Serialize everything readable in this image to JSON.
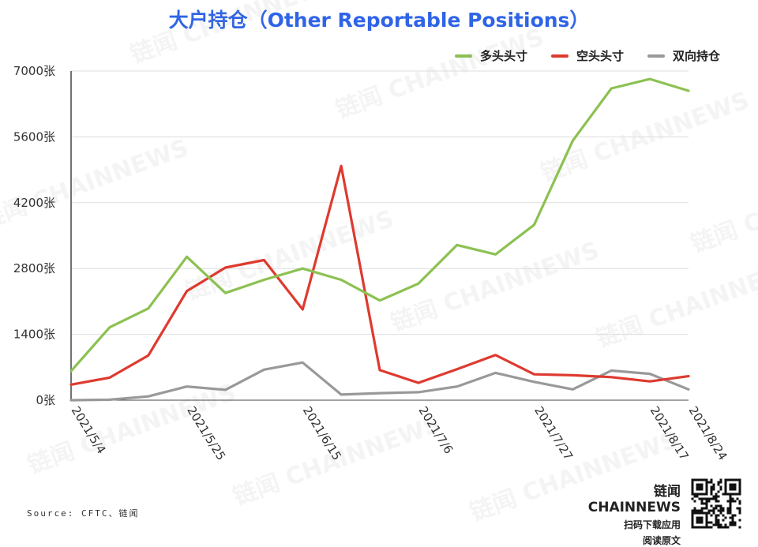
{
  "title": "大户持仓（Other Reportable Positions）",
  "legend": [
    {
      "name": "多头头寸",
      "color": "#8cc152"
    },
    {
      "name": "空头头寸",
      "color": "#de3a2f"
    },
    {
      "name": "双向持仓",
      "color": "#999999"
    }
  ],
  "source": "Source: CFTC、链闻",
  "brand": {
    "name": "链闻 CHAINNEWS",
    "line1": "扫码下载应用",
    "line2": "阅读原文"
  },
  "watermark_text": "链闻 CHAINNEWS",
  "chart_data": {
    "type": "line",
    "x": [
      "2021/5/4",
      "2021/5/11",
      "2021/5/18",
      "2021/5/25",
      "2021/6/1",
      "2021/6/8",
      "2021/6/15",
      "2021/6/22",
      "2021/6/29",
      "2021/7/6",
      "2021/7/13",
      "2021/7/20",
      "2021/7/27",
      "2021/8/3",
      "2021/8/10",
      "2021/8/17",
      "2021/8/24"
    ],
    "tick_labels": [
      "2021/5/4",
      "2021/5/25",
      "2021/6/15",
      "2021/7/6",
      "2021/7/27",
      "2021/8/17",
      "2021/8/24"
    ],
    "y_tick_labels": [
      "0张",
      "1400张",
      "2800张",
      "4200张",
      "5600张",
      "7000张"
    ],
    "series": [
      {
        "name": "多头头寸",
        "color": "#8cc152",
        "values": [
          620,
          1550,
          1950,
          3050,
          2280,
          2560,
          2800,
          2560,
          2120,
          2480,
          3300,
          3100,
          3730,
          5520,
          6630,
          6830,
          6580
        ]
      },
      {
        "name": "空头头寸",
        "color": "#de3a2f",
        "values": [
          330,
          480,
          950,
          2320,
          2820,
          2980,
          1930,
          4980,
          640,
          370,
          660,
          960,
          550,
          530,
          490,
          400,
          510
        ]
      },
      {
        "name": "双向持仓",
        "color": "#999999",
        "values": [
          0,
          10,
          80,
          290,
          220,
          650,
          800,
          120,
          150,
          170,
          290,
          580,
          390,
          230,
          630,
          560,
          230
        ]
      }
    ],
    "ylim": [
      0,
      7000
    ],
    "grid": true,
    "legend_position": "top-right"
  }
}
